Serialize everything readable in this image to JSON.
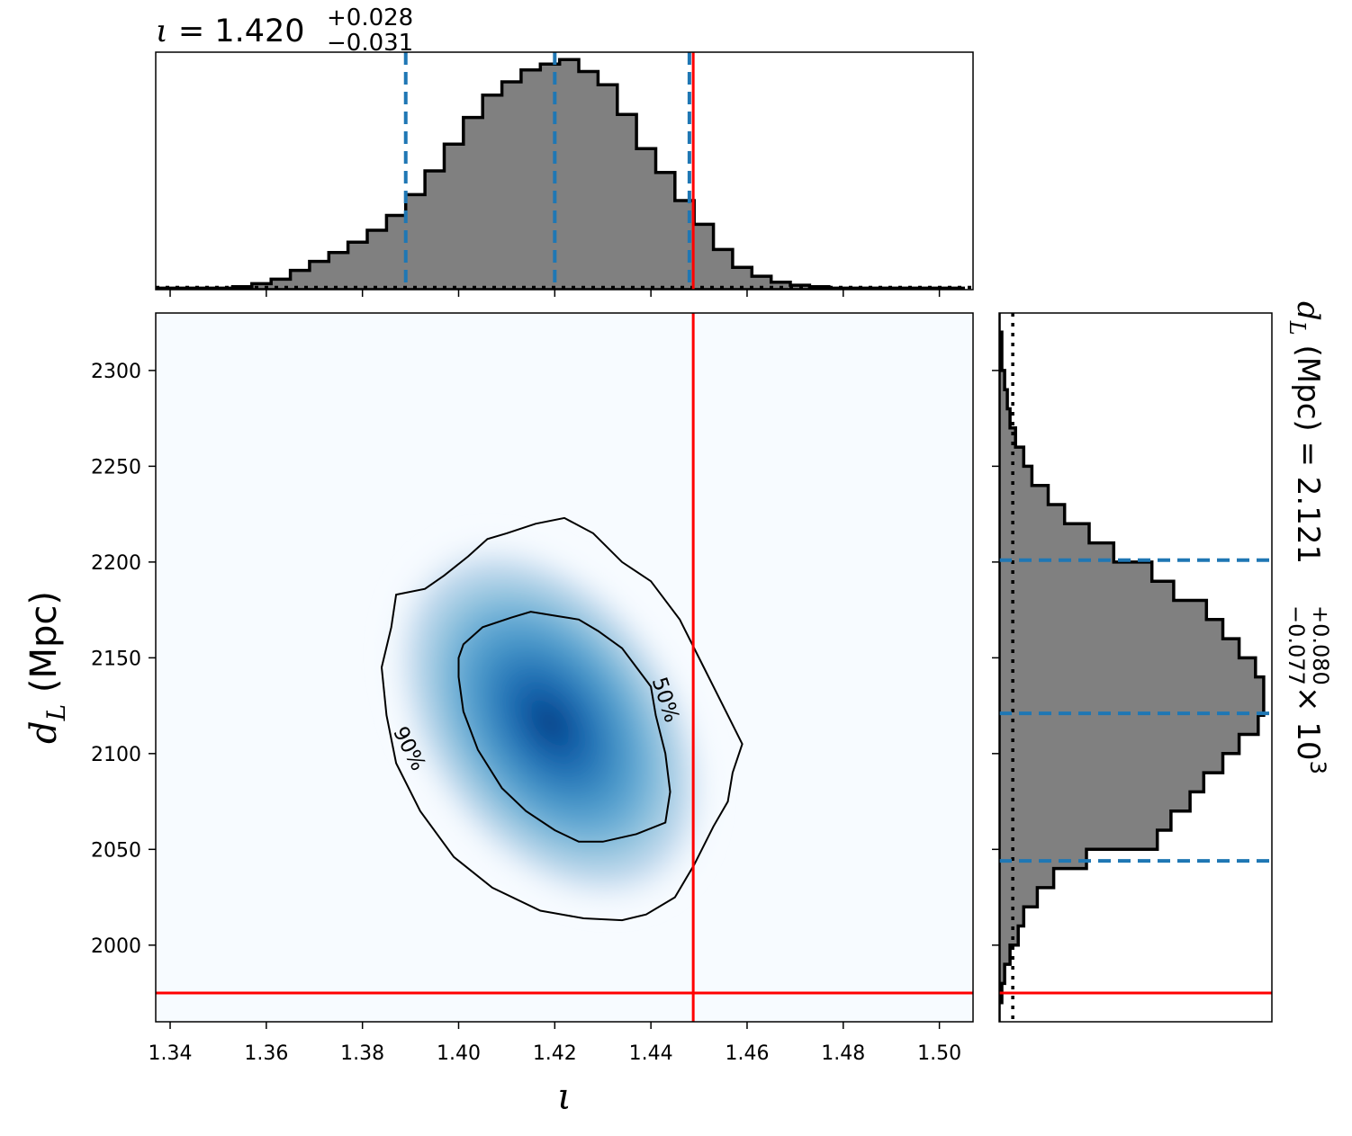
{
  "chart_data": {
    "type": "corner-plot",
    "parameters": [
      {
        "symbol": "ι",
        "median": 1.42,
        "plus": "+0.028",
        "minus": "−0.031",
        "title_value": "1.420",
        "title_plus": "+0.028",
        "title_minus": "−0.031",
        "interval": [
          1.389,
          1.448
        ],
        "true_value": 1.4488
      },
      {
        "symbol": "d",
        "subscript": "L",
        "unit": "(Mpc)",
        "median": 2121,
        "plus": 80,
        "minus": 77,
        "title_value": "2.121",
        "title_plus": "+0.080",
        "title_minus": "−0.077",
        "title_scale": "× 10",
        "title_exp": "3",
        "interval": [
          2044,
          2201
        ],
        "true_value": 1975
      }
    ],
    "joint": {
      "xlabel_symbol": "ι",
      "ylabel_symbol": "d",
      "ylabel_sub": "L",
      "ylabel_unit": "(Mpc)",
      "xlim": [
        1.337,
        1.507
      ],
      "ylim": [
        1960,
        2330
      ],
      "xticks": [
        "1.34",
        "1.36",
        "1.38",
        "1.40",
        "1.42",
        "1.44",
        "1.46",
        "1.48",
        "1.50"
      ],
      "yticks": [
        "2000",
        "2050",
        "2100",
        "2150",
        "2200",
        "2250",
        "2300"
      ],
      "peak": [
        1.419,
        2116
      ],
      "colormap": "Blues",
      "contours": [
        {
          "label": "50%",
          "points": [
            [
              1.401,
              2157
            ],
            [
              1.405,
              2166
            ],
            [
              1.411,
              2171
            ],
            [
              1.415,
              2174
            ],
            [
              1.42,
              2172
            ],
            [
              1.425,
              2170
            ],
            [
              1.429,
              2164
            ],
            [
              1.434,
              2155
            ],
            [
              1.437,
              2145
            ],
            [
              1.44,
              2135
            ],
            [
              1.441,
              2120
            ],
            [
              1.443,
              2100
            ],
            [
              1.444,
              2080
            ],
            [
              1.443,
              2064
            ],
            [
              1.437,
              2058
            ],
            [
              1.43,
              2054
            ],
            [
              1.425,
              2054
            ],
            [
              1.42,
              2060
            ],
            [
              1.414,
              2070
            ],
            [
              1.409,
              2082
            ],
            [
              1.404,
              2102
            ],
            [
              1.401,
              2122
            ],
            [
              1.4,
              2140
            ],
            [
              1.4,
              2150
            ]
          ]
        },
        {
          "label": "90%",
          "points": [
            [
              1.386,
              2166
            ],
            [
              1.387,
              2183
            ],
            [
              1.393,
              2186
            ],
            [
              1.397,
              2193
            ],
            [
              1.402,
              2203
            ],
            [
              1.406,
              2212
            ],
            [
              1.41,
              2215
            ],
            [
              1.416,
              2220
            ],
            [
              1.422,
              2223
            ],
            [
              1.428,
              2215
            ],
            [
              1.434,
              2200
            ],
            [
              1.44,
              2190
            ],
            [
              1.446,
              2170
            ],
            [
              1.451,
              2145
            ],
            [
              1.456,
              2120
            ],
            [
              1.459,
              2105
            ],
            [
              1.457,
              2090
            ],
            [
              1.456,
              2075
            ],
            [
              1.453,
              2062
            ],
            [
              1.449,
              2042
            ],
            [
              1.445,
              2025
            ],
            [
              1.439,
              2016
            ],
            [
              1.434,
              2013
            ],
            [
              1.426,
              2014
            ],
            [
              1.417,
              2018
            ],
            [
              1.407,
              2030
            ],
            [
              1.399,
              2046
            ],
            [
              1.392,
              2070
            ],
            [
              1.387,
              2095
            ],
            [
              1.385,
              2120
            ],
            [
              1.384,
              2145
            ]
          ]
        }
      ],
      "truth_color": "#ff0000"
    },
    "marginal_iota": {
      "bins": [
        1.337,
        1.341,
        1.345,
        1.349,
        1.353,
        1.357,
        1.361,
        1.365,
        1.369,
        1.373,
        1.377,
        1.381,
        1.385,
        1.389,
        1.393,
        1.397,
        1.401,
        1.405,
        1.409,
        1.413,
        1.417,
        1.421,
        1.425,
        1.429,
        1.433,
        1.437,
        1.441,
        1.445,
        1.449,
        1.453,
        1.457,
        1.461,
        1.465,
        1.469,
        1.473,
        1.477,
        1.481,
        1.485,
        1.489,
        1.493,
        1.497,
        1.501,
        1.505
      ],
      "counts": [
        1,
        1,
        1,
        1,
        2,
        4,
        7,
        13,
        19,
        25,
        32,
        40,
        50,
        64,
        80,
        98,
        116,
        131,
        140,
        148,
        152,
        155,
        147,
        138,
        118,
        95,
        79,
        60,
        44,
        27,
        15,
        9,
        5,
        3,
        2,
        1,
        1,
        1,
        1,
        1,
        1,
        1
      ],
      "prior_level": 1.5,
      "ylim": [
        0,
        160
      ]
    },
    "marginal_dl": {
      "bins": [
        1960,
        1970,
        1980,
        1990,
        2000,
        2010,
        2020,
        2030,
        2040,
        2050,
        2060,
        2070,
        2080,
        2090,
        2100,
        2110,
        2120,
        2130,
        2140,
        2150,
        2160,
        2170,
        2180,
        2190,
        2200,
        2210,
        2220,
        2230,
        2240,
        2250,
        2260,
        2270,
        2280,
        2290,
        2300,
        2310,
        2320,
        2330
      ],
      "counts": [
        0,
        1,
        2,
        4,
        7,
        9,
        14,
        20,
        32,
        58,
        63,
        70,
        75,
        82,
        88,
        95,
        97,
        97,
        94,
        88,
        82,
        76,
        64,
        56,
        42,
        33,
        24,
        18,
        12,
        9,
        6,
        4,
        3,
        2,
        1,
        1,
        0
      ],
      "prior_level": 5,
      "xlim": [
        0,
        100
      ]
    },
    "colors": {
      "hist_fill": "#808080",
      "quantile": "#1f77b4",
      "truth": "#ff0000",
      "prior": "#000000"
    }
  }
}
